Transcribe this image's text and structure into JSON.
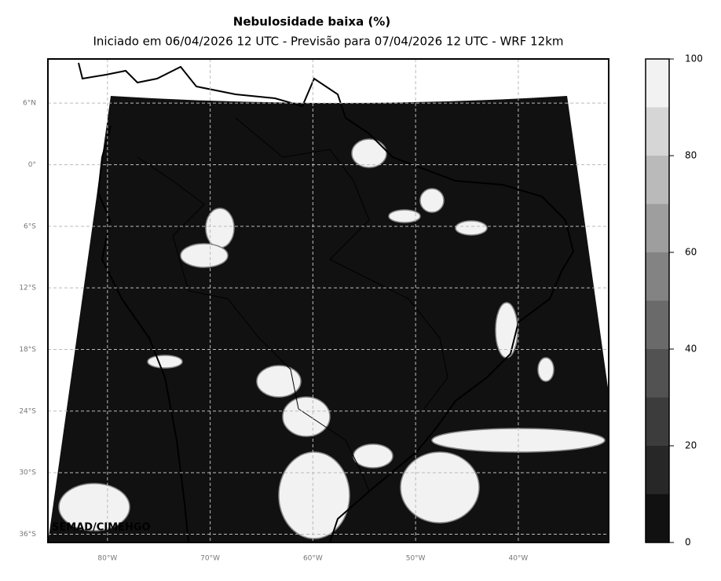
{
  "header": {
    "title": "Nebulosidade baixa (%)",
    "subtitle": "Iniciado em 06/04/2026 12 UTC - Previsão para 07/04/2026 12 UTC - WRF 12km"
  },
  "map": {
    "lat_range": [
      -36.8,
      10.3
    ],
    "lon_range": [
      -85.8,
      -31.2
    ],
    "lat_ticks": [
      {
        "value": 6,
        "label": "6°N"
      },
      {
        "value": 0,
        "label": "0°"
      },
      {
        "value": -6,
        "label": "6°S"
      },
      {
        "value": -12,
        "label": "12°S"
      },
      {
        "value": -18,
        "label": "18°S"
      },
      {
        "value": -24,
        "label": "24°S"
      },
      {
        "value": -30,
        "label": "30°S"
      },
      {
        "value": -36,
        "label": "36°S"
      }
    ],
    "lon_ticks": [
      {
        "value": -80,
        "label": "80°W"
      },
      {
        "value": -70,
        "label": "70°W"
      },
      {
        "value": -60,
        "label": "60°W"
      },
      {
        "value": -50,
        "label": "50°W"
      },
      {
        "value": -40,
        "label": "40°W"
      }
    ],
    "grid": true,
    "watermark": "SEMAD/CIMEHGO"
  },
  "colorbar": {
    "range": [
      0,
      100
    ],
    "ticks": [
      0,
      20,
      40,
      60,
      80,
      100
    ],
    "levels": [
      0,
      10,
      20,
      30,
      40,
      50,
      60,
      70,
      80,
      90,
      100
    ],
    "colors": [
      "#111111",
      "#272727",
      "#3c3c3c",
      "#525252",
      "#6a6a6a",
      "#838383",
      "#9e9e9e",
      "#bababa",
      "#d6d6d6",
      "#f2f2f2"
    ]
  }
}
